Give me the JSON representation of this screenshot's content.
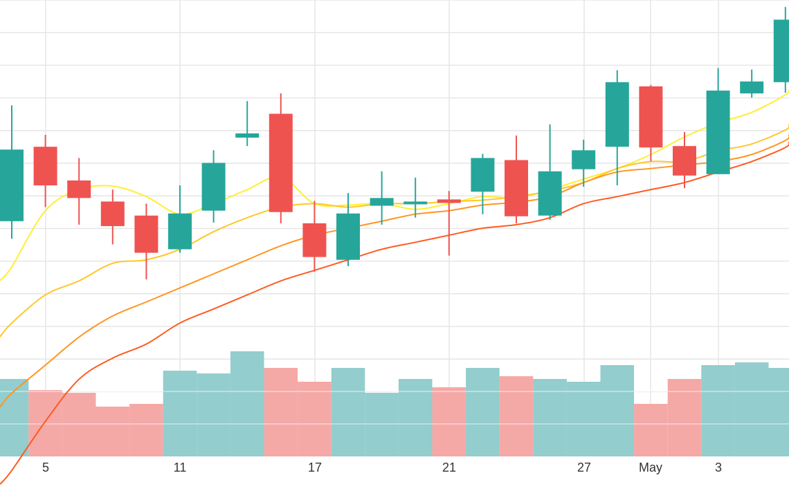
{
  "chart_data": {
    "type": "candlestick",
    "x_tick_labels": [
      "5",
      "11",
      "17",
      "21",
      "27",
      "May",
      "3"
    ],
    "grid": true,
    "colors": {
      "up": "#26a69a",
      "down": "#ef5350",
      "up_volume": "#93cdcd",
      "down_volume": "#f4a9a7",
      "grid": "#e6e6e6",
      "ma_lines": [
        "#ffee33",
        "#ffc629",
        "#ff9520",
        "#ff5a1f"
      ]
    },
    "candles": [
      {
        "open": 78.5,
        "close": 88.7,
        "high": 95.0,
        "low": 76.0
      },
      {
        "open": 89.1,
        "close": 83.6,
        "high": 90.8,
        "low": 80.5
      },
      {
        "open": 84.3,
        "close": 81.8,
        "high": 87.5,
        "low": 78.0
      },
      {
        "open": 81.3,
        "close": 77.8,
        "high": 83.0,
        "low": 75.2
      },
      {
        "open": 79.3,
        "close": 74.0,
        "high": 81.0,
        "low": 70.2
      },
      {
        "open": 74.5,
        "close": 79.6,
        "high": 83.6,
        "low": 74.0
      },
      {
        "open": 80.0,
        "close": 86.8,
        "high": 88.6,
        "low": 78.3
      },
      {
        "open": 90.4,
        "close": 91.0,
        "high": 95.6,
        "low": 89.2
      },
      {
        "open": 93.8,
        "close": 79.8,
        "high": 96.7,
        "low": 78.2
      },
      {
        "open": 78.2,
        "close": 73.4,
        "high": 81.4,
        "low": 71.3
      },
      {
        "open": 73.0,
        "close": 79.6,
        "high": 82.5,
        "low": 72.1
      },
      {
        "open": 80.7,
        "close": 81.8,
        "high": 85.6,
        "low": 78.0
      },
      {
        "open": 81.3,
        "close": 81.3,
        "high": 84.7,
        "low": 79.0
      },
      {
        "open": 81.6,
        "close": 81.1,
        "high": 82.8,
        "low": 73.6
      },
      {
        "open": 82.7,
        "close": 87.5,
        "high": 88.1,
        "low": 79.5
      },
      {
        "open": 87.2,
        "close": 79.2,
        "high": 90.7,
        "low": 78.2
      },
      {
        "open": 79.3,
        "close": 85.6,
        "high": 92.3,
        "low": 78.7
      },
      {
        "open": 85.9,
        "close": 88.6,
        "high": 90.1,
        "low": 83.4
      },
      {
        "open": 89.1,
        "close": 98.3,
        "high": 100.0,
        "low": 83.6
      },
      {
        "open": 97.7,
        "close": 89.0,
        "high": 97.9,
        "low": 87.0
      },
      {
        "open": 89.2,
        "close": 85.0,
        "high": 91.2,
        "low": 83.2
      },
      {
        "open": 85.2,
        "close": 97.1,
        "high": 100.3,
        "low": 85.2
      },
      {
        "open": 96.7,
        "close": 98.4,
        "high": 100.1,
        "low": 96.1
      },
      {
        "open": 98.3,
        "close": 107.2,
        "high": 109.0,
        "low": 96.8
      }
    ],
    "volume": [
      2.8,
      2.4,
      2.3,
      1.8,
      1.9,
      3.1,
      3.0,
      3.8,
      3.2,
      2.7,
      3.2,
      2.3,
      2.8,
      2.5,
      3.2,
      2.9,
      2.8,
      2.7,
      3.3,
      1.9,
      2.8,
      3.3,
      3.4,
      3.2
    ],
    "volume_direction": [
      "up",
      "down",
      "down",
      "down",
      "down",
      "up",
      "up",
      "up",
      "down",
      "down",
      "up",
      "up",
      "up",
      "down",
      "up",
      "down",
      "up",
      "up",
      "up",
      "down",
      "down",
      "up",
      "up",
      "up"
    ],
    "ma_lines": [
      [
        72.0,
        80.0,
        83.0,
        83.5,
        82.0,
        79.5,
        81.0,
        83.0,
        84.8,
        81.0,
        80.8,
        81.0,
        80.2,
        81.0,
        82.0,
        81.8,
        83.0,
        84.5,
        86.0,
        88.0,
        90.5,
        92.5,
        94.0,
        96.5
      ],
      [
        64.0,
        68.0,
        70.0,
        72.5,
        73.0,
        74.5,
        77.0,
        79.0,
        80.5,
        81.0,
        80.5,
        81.0,
        81.0,
        81.3,
        81.5,
        82.0,
        82.8,
        84.0,
        86.0,
        87.0,
        87.0,
        88.5,
        89.5,
        91.5
      ],
      [
        54.0,
        58.0,
        62.0,
        65.0,
        67.0,
        69.0,
        71.0,
        73.0,
        75.0,
        76.5,
        77.5,
        78.5,
        79.5,
        80.0,
        80.8,
        81.2,
        82.0,
        84.0,
        85.5,
        86.0,
        86.5,
        87.0,
        88.0,
        90.0
      ],
      [
        43.0,
        50.0,
        56.0,
        59.0,
        61.0,
        64.0,
        66.0,
        68.0,
        70.0,
        71.5,
        73.0,
        74.5,
        75.5,
        76.5,
        77.5,
        78.0,
        79.0,
        81.0,
        82.0,
        83.0,
        84.0,
        85.5,
        87.0,
        89.0
      ]
    ]
  }
}
